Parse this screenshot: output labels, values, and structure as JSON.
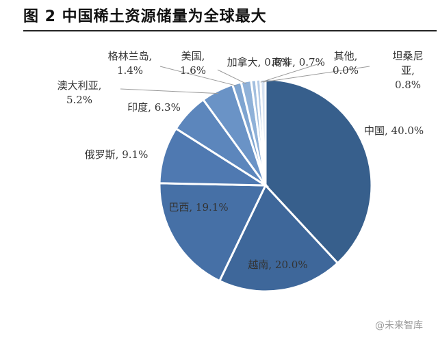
{
  "figure": {
    "title": "图  2  中国稀土资源储量为全球最大",
    "watermark": "@未来智库"
  },
  "chart_data": {
    "type": "pie",
    "title": "图  2  中国稀土资源储量为全球最大",
    "unit": "%",
    "slices": [
      {
        "label": "中国",
        "value": 40.0,
        "display": "中国, 40.0%",
        "color": "#375f8c"
      },
      {
        "label": "越南",
        "value": 20.0,
        "display": "越南, 20.0%",
        "color": "#3e679a"
      },
      {
        "label": "巴西",
        "value": 19.1,
        "display": "巴西, 19.1%",
        "color": "#4670a6"
      },
      {
        "label": "俄罗斯",
        "value": 9.1,
        "display": "俄罗斯, 9.1%",
        "color": "#4f79b1"
      },
      {
        "label": "印度",
        "value": 6.3,
        "display": "印度, 6.3%",
        "color": "#5c86bc"
      },
      {
        "label": "澳大利亚",
        "value": 5.2,
        "display": "澳大利亚,\n5.2%",
        "color": "#6a93c6"
      },
      {
        "label": "格林兰岛",
        "value": 1.4,
        "display": "格林兰岛,\n1.4%",
        "color": "#7ea4d0"
      },
      {
        "label": "美国",
        "value": 1.6,
        "display": "美国,\n1.6%",
        "color": "#8fb1d8"
      },
      {
        "label": "加拿大",
        "value": 0.8,
        "display": "加拿大, 0.8%",
        "color": "#a3bfdf"
      },
      {
        "label": "南非",
        "value": 0.7,
        "display": "南非, 0.7%",
        "color": "#b5cbe6"
      },
      {
        "label": "其他",
        "value": 0.0,
        "display": "其他,\n0.0%",
        "color": "#c7d7ec"
      },
      {
        "label": "坦桑尼亚",
        "value": 0.8,
        "display": "坦桑尼\n亚,\n0.8%",
        "color": "#d6e2f1"
      }
    ]
  }
}
